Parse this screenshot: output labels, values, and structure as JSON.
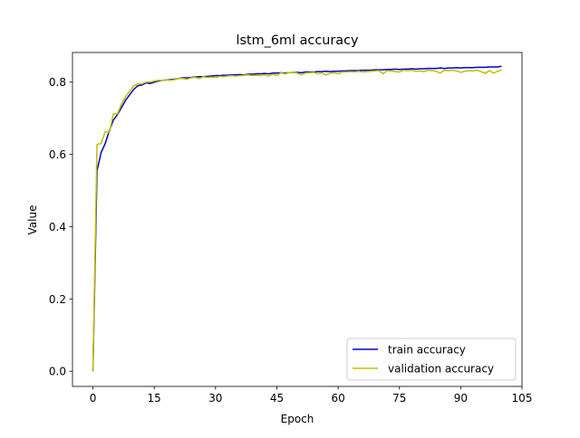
{
  "chart_data": {
    "type": "line",
    "title": "lstm_6ml accuracy",
    "xlabel": "Epoch",
    "ylabel": "Value",
    "xlim": [
      -5,
      105
    ],
    "ylim": [
      -0.042,
      0.882
    ],
    "xticks": [
      0,
      15,
      30,
      45,
      60,
      75,
      90,
      105
    ],
    "yticks": [
      0.0,
      0.2,
      0.4,
      0.6,
      0.8
    ],
    "xtick_labels": [
      "0",
      "15",
      "30",
      "45",
      "60",
      "75",
      "90",
      "105"
    ],
    "ytick_labels": [
      "0.0",
      "0.2",
      "0.4",
      "0.6",
      "0.8"
    ],
    "grid": false,
    "legend_position": "lower-right",
    "series": [
      {
        "name": "train accuracy",
        "color": "#0000cc",
        "x": [
          0,
          1,
          2,
          3,
          4,
          5,
          6,
          7,
          8,
          9,
          10,
          11,
          12,
          13,
          14,
          15,
          16,
          17,
          18,
          19,
          20,
          21,
          22,
          23,
          24,
          25,
          26,
          27,
          28,
          29,
          30,
          31,
          32,
          33,
          34,
          35,
          36,
          37,
          38,
          39,
          40,
          41,
          42,
          43,
          44,
          45,
          46,
          47,
          48,
          49,
          50,
          51,
          52,
          53,
          54,
          55,
          56,
          57,
          58,
          59,
          60,
          61,
          62,
          63,
          64,
          65,
          66,
          67,
          68,
          69,
          70,
          71,
          72,
          73,
          74,
          75,
          76,
          77,
          78,
          79,
          80,
          81,
          82,
          83,
          84,
          85,
          86,
          87,
          88,
          89,
          90,
          91,
          92,
          93,
          94,
          95,
          96,
          97,
          98,
          99,
          100
        ],
        "values": [
          0.0,
          0.555,
          0.605,
          0.63,
          0.665,
          0.695,
          0.71,
          0.73,
          0.75,
          0.765,
          0.78,
          0.79,
          0.792,
          0.798,
          0.796,
          0.8,
          0.803,
          0.805,
          0.806,
          0.807,
          0.808,
          0.81,
          0.812,
          0.812,
          0.813,
          0.814,
          0.815,
          0.815,
          0.816,
          0.817,
          0.818,
          0.818,
          0.819,
          0.819,
          0.82,
          0.82,
          0.821,
          0.82,
          0.822,
          0.822,
          0.823,
          0.823,
          0.824,
          0.823,
          0.825,
          0.825,
          0.826,
          0.825,
          0.826,
          0.827,
          0.827,
          0.826,
          0.828,
          0.828,
          0.828,
          0.829,
          0.829,
          0.83,
          0.829,
          0.83,
          0.83,
          0.831,
          0.831,
          0.832,
          0.832,
          0.832,
          0.833,
          0.833,
          0.833,
          0.834,
          0.834,
          0.834,
          0.835,
          0.835,
          0.836,
          0.835,
          0.836,
          0.836,
          0.837,
          0.836,
          0.837,
          0.837,
          0.838,
          0.838,
          0.838,
          0.839,
          0.838,
          0.839,
          0.839,
          0.84,
          0.839,
          0.84,
          0.84,
          0.84,
          0.841,
          0.841,
          0.841,
          0.842,
          0.842,
          0.842,
          0.844
        ]
      },
      {
        "name": "validation accuracy",
        "color": "#bfbf00",
        "x": [
          0,
          1,
          2,
          3,
          4,
          5,
          6,
          7,
          8,
          9,
          10,
          11,
          12,
          13,
          14,
          15,
          16,
          17,
          18,
          19,
          20,
          21,
          22,
          23,
          24,
          25,
          26,
          27,
          28,
          29,
          30,
          31,
          32,
          33,
          34,
          35,
          36,
          37,
          38,
          39,
          40,
          41,
          42,
          43,
          44,
          45,
          46,
          47,
          48,
          49,
          50,
          51,
          52,
          53,
          54,
          55,
          56,
          57,
          58,
          59,
          60,
          61,
          62,
          63,
          64,
          65,
          66,
          67,
          68,
          69,
          70,
          71,
          72,
          73,
          74,
          75,
          76,
          77,
          78,
          79,
          80,
          81,
          82,
          83,
          84,
          85,
          86,
          87,
          88,
          89,
          90,
          91,
          92,
          93,
          94,
          95,
          96,
          97,
          98,
          99,
          100
        ],
        "values": [
          0.0,
          0.628,
          0.63,
          0.663,
          0.66,
          0.712,
          0.712,
          0.74,
          0.76,
          0.775,
          0.79,
          0.795,
          0.795,
          0.8,
          0.8,
          0.803,
          0.805,
          0.805,
          0.806,
          0.805,
          0.807,
          0.81,
          0.81,
          0.808,
          0.812,
          0.813,
          0.81,
          0.815,
          0.813,
          0.814,
          0.813,
          0.816,
          0.815,
          0.817,
          0.818,
          0.817,
          0.818,
          0.819,
          0.82,
          0.818,
          0.819,
          0.818,
          0.82,
          0.817,
          0.822,
          0.818,
          0.826,
          0.823,
          0.826,
          0.827,
          0.825,
          0.82,
          0.825,
          0.826,
          0.827,
          0.823,
          0.825,
          0.82,
          0.824,
          0.826,
          0.823,
          0.828,
          0.828,
          0.829,
          0.828,
          0.83,
          0.828,
          0.829,
          0.83,
          0.831,
          0.832,
          0.823,
          0.832,
          0.831,
          0.829,
          0.828,
          0.833,
          0.832,
          0.833,
          0.83,
          0.831,
          0.829,
          0.833,
          0.832,
          0.83,
          0.825,
          0.833,
          0.832,
          0.833,
          0.831,
          0.827,
          0.83,
          0.832,
          0.831,
          0.833,
          0.829,
          0.824,
          0.832,
          0.825,
          0.83,
          0.834
        ]
      }
    ]
  }
}
